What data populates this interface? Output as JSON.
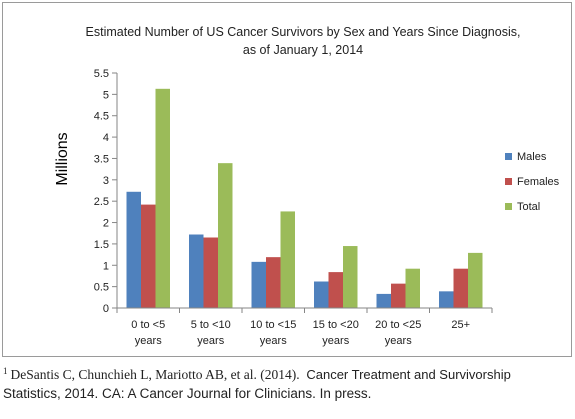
{
  "chart_data": {
    "type": "bar",
    "title_lines": [
      "Estimated Number of US Cancer Survivors by Sex and Years Since Diagnosis,",
      "as of January 1, 2014"
    ],
    "ylabel": "Millions",
    "xlabel": "",
    "ylim": [
      0,
      5.5
    ],
    "yticks": [
      "0",
      "0.5",
      "1",
      "1.5",
      "2",
      "2.5",
      "3",
      "3.5",
      "4",
      "4.5",
      "5",
      "5.5"
    ],
    "ytick_values": [
      0,
      0.5,
      1,
      1.5,
      2,
      2.5,
      3,
      3.5,
      4,
      4.5,
      5,
      5.5
    ],
    "grid": false,
    "legend_position": "right",
    "categories": [
      [
        "0 to <5",
        "years"
      ],
      [
        "5 to <10",
        "years"
      ],
      [
        "10 to <15",
        "years"
      ],
      [
        "15 to <20",
        "years"
      ],
      [
        "20 to <25",
        "years"
      ],
      [
        "25+"
      ]
    ],
    "series": [
      {
        "name": "Males",
        "color": "#4f81bd",
        "values": [
          2.72,
          1.72,
          1.08,
          0.62,
          0.33,
          0.39
        ]
      },
      {
        "name": "Females",
        "color": "#c0504d",
        "values": [
          2.42,
          1.65,
          1.19,
          0.84,
          0.57,
          0.92
        ]
      },
      {
        "name": "Total",
        "color": "#9bbb59",
        "values": [
          5.13,
          3.39,
          2.26,
          1.45,
          0.92,
          1.29
        ]
      }
    ]
  },
  "footnote": {
    "marker": "1",
    "line1_text": "DeSantis C, Chunchieh L, Mariotto AB, et al. (2014).",
    "line1_rest": "Cancer Treatment and Survivorship",
    "line2": "Statistics, 2014. CA: A Cancer Journal for Clinicians. In press."
  }
}
